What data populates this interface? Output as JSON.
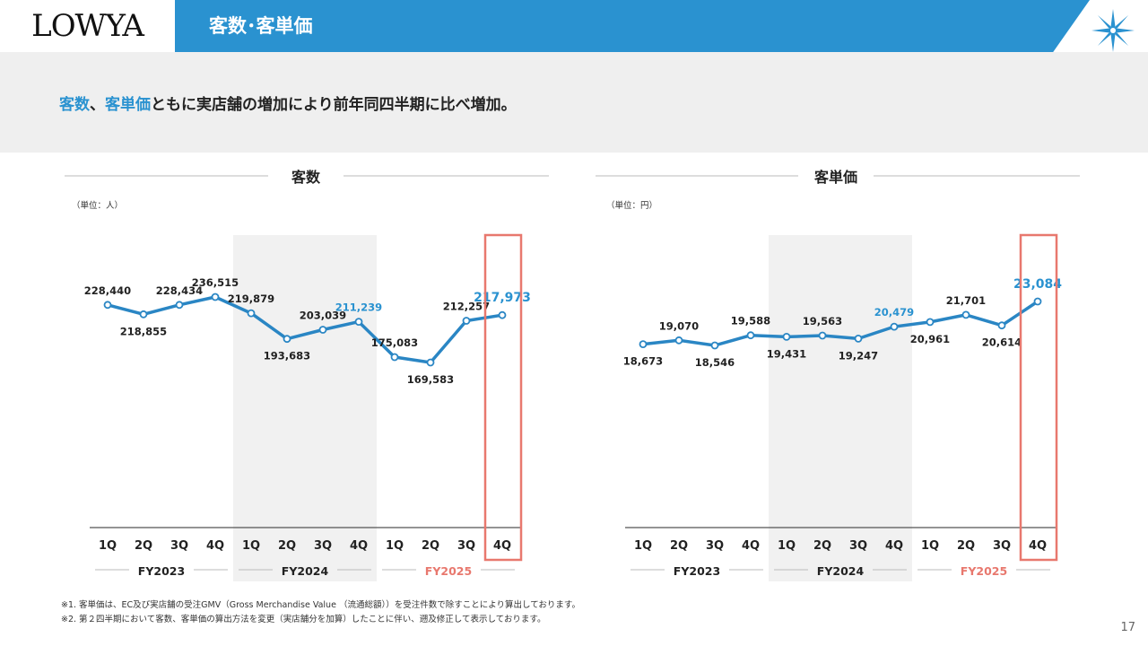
{
  "header": {
    "logo": "LOWYA",
    "title": "客数･客単価"
  },
  "summary": {
    "hl1": "客数",
    "sep": "、",
    "hl2": "客単価",
    "rest": "ともに実店舗の増加により前年同四半期に比べ増加。"
  },
  "colors": {
    "line": "#2a86c4",
    "highlight_label": "#2a92d0",
    "fy2025_label": "#e8786e",
    "highlight_box": "#e8786e",
    "shade": "#f1f1f1"
  },
  "chart_data": [
    {
      "type": "line",
      "title": "客数",
      "unit_label": "（単位：人）",
      "categories": [
        "1Q",
        "2Q",
        "3Q",
        "4Q",
        "1Q",
        "2Q",
        "3Q",
        "4Q",
        "1Q",
        "2Q",
        "3Q",
        "4Q"
      ],
      "values": [
        228440,
        218855,
        228434,
        236515,
        219879,
        193683,
        203039,
        211239,
        175083,
        169583,
        212257,
        217973
      ],
      "value_labels": [
        "228,440",
        "218,855",
        "228,434",
        "236,515",
        "219,879",
        "193,683",
        "203,039",
        "211,239",
        "175,083",
        "169,583",
        "212,257",
        "217,973"
      ],
      "label_position": [
        "above",
        "below",
        "above",
        "above",
        "above",
        "below",
        "above",
        "above",
        "above",
        "below",
        "above",
        "above"
      ],
      "highlight_points": [
        7,
        11
      ],
      "ylim": [
        0,
        260000
      ],
      "groups": [
        {
          "label": "FY2023",
          "start": 0,
          "end": 3
        },
        {
          "label": "FY2024",
          "start": 4,
          "end": 7,
          "shaded": true
        },
        {
          "label": "FY2025",
          "start": 8,
          "end": 11,
          "accent": true
        }
      ],
      "highlight_box_index": 11
    },
    {
      "type": "line",
      "title": "客単価",
      "unit_label": "（単位：円）",
      "categories": [
        "1Q",
        "2Q",
        "3Q",
        "4Q",
        "1Q",
        "2Q",
        "3Q",
        "4Q",
        "1Q",
        "2Q",
        "3Q",
        "4Q"
      ],
      "values": [
        18673,
        19070,
        18546,
        19588,
        19431,
        19563,
        19247,
        20479,
        20961,
        21701,
        20614,
        23084
      ],
      "value_labels": [
        "18,673",
        "19,070",
        "18,546",
        "19,588",
        "19,431",
        "19,563",
        "19,247",
        "20,479",
        "20,961",
        "21,701",
        "20,614",
        "23,084"
      ],
      "label_position": [
        "below",
        "above",
        "below",
        "above",
        "below",
        "above",
        "below",
        "above",
        "below",
        "above",
        "below",
        "above"
      ],
      "highlight_points": [
        7,
        11
      ],
      "ylim": [
        0,
        25000
      ],
      "groups": [
        {
          "label": "FY2023",
          "start": 0,
          "end": 3
        },
        {
          "label": "FY2024",
          "start": 4,
          "end": 7,
          "shaded": true
        },
        {
          "label": "FY2025",
          "start": 8,
          "end": 11,
          "accent": true
        }
      ],
      "highlight_box_index": 11
    }
  ],
  "footnotes": [
    "※1. 客単価は、EC及び実店舗の受注GMV（Gross Merchandise Value （流通総額））を受注件数で除すことにより算出しております。",
    "※2. 第２四半期において客数、客単価の算出方法を変更（実店舗分を加算）したことに伴い、遡及修正して表示しております。"
  ],
  "page_number": "17"
}
